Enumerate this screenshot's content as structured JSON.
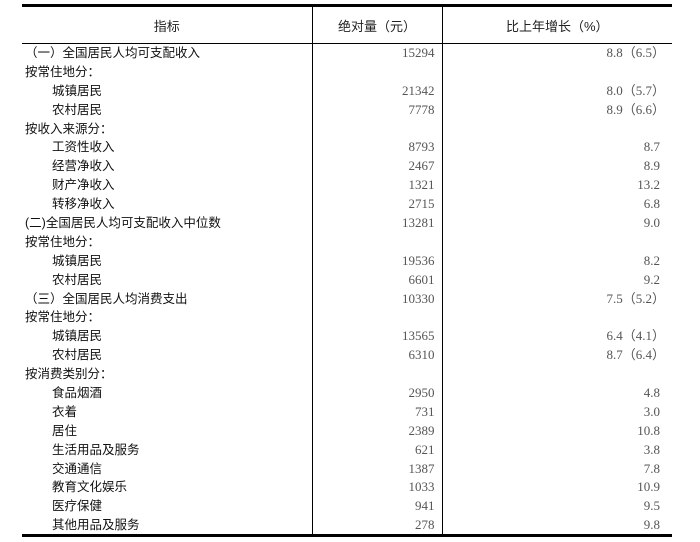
{
  "table": {
    "headers": [
      "指标",
      "绝对量（元）",
      "比上年增长（%）"
    ],
    "rows": [
      {
        "label": "（一）全国居民人均可支配收入",
        "level": 0,
        "value": "15294",
        "growth": "8.8（6.5）"
      },
      {
        "label": "按常住地分：",
        "level": 0,
        "value": "",
        "growth": ""
      },
      {
        "label": "城镇居民",
        "level": 1,
        "value": "21342",
        "growth": "8.0（5.7）"
      },
      {
        "label": "农村居民",
        "level": 1,
        "value": "7778",
        "growth": "8.9（6.6）"
      },
      {
        "label": "按收入来源分：",
        "level": 0,
        "value": "",
        "growth": ""
      },
      {
        "label": "工资性收入",
        "level": 1,
        "value": "8793",
        "growth": "8.7"
      },
      {
        "label": "经营净收入",
        "level": 1,
        "value": "2467",
        "growth": "8.9"
      },
      {
        "label": "财产净收入",
        "level": 1,
        "value": "1321",
        "growth": "13.2"
      },
      {
        "label": "转移净收入",
        "level": 1,
        "value": "2715",
        "growth": "6.8"
      },
      {
        "label": "(二)全国居民人均可支配收入中位数",
        "level": 0,
        "value": "13281",
        "growth": "9.0"
      },
      {
        "label": "按常住地分：",
        "level": 0,
        "value": "",
        "growth": ""
      },
      {
        "label": "城镇居民",
        "level": 1,
        "value": "19536",
        "growth": "8.2"
      },
      {
        "label": "农村居民",
        "level": 1,
        "value": "6601",
        "growth": "9.2"
      },
      {
        "label": "（三）全国居民人均消费支出",
        "level": 0,
        "value": "10330",
        "growth": "7.5（5.2）"
      },
      {
        "label": "按常住地分：",
        "level": 0,
        "value": "",
        "growth": ""
      },
      {
        "label": "城镇居民",
        "level": 1,
        "value": "13565",
        "growth": "6.4（4.1）"
      },
      {
        "label": "农村居民",
        "level": 1,
        "value": "6310",
        "growth": "8.7（6.4）"
      },
      {
        "label": "按消费类别分：",
        "level": 0,
        "value": "",
        "growth": ""
      },
      {
        "label": "食品烟酒",
        "level": 1,
        "value": "2950",
        "growth": "4.8"
      },
      {
        "label": "衣着",
        "level": 1,
        "value": "731",
        "growth": "3.0"
      },
      {
        "label": "居住",
        "level": 1,
        "value": "2389",
        "growth": "10.8"
      },
      {
        "label": "生活用品及服务",
        "level": 1,
        "value": "621",
        "growth": "3.8"
      },
      {
        "label": "交通通信",
        "level": 1,
        "value": "1387",
        "growth": "7.8"
      },
      {
        "label": "教育文化娱乐",
        "level": 1,
        "value": "1033",
        "growth": "10.9"
      },
      {
        "label": "医疗保健",
        "level": 1,
        "value": "941",
        "growth": "9.5"
      },
      {
        "label": "其他用品及服务",
        "level": 1,
        "value": "278",
        "growth": "9.8"
      }
    ]
  }
}
